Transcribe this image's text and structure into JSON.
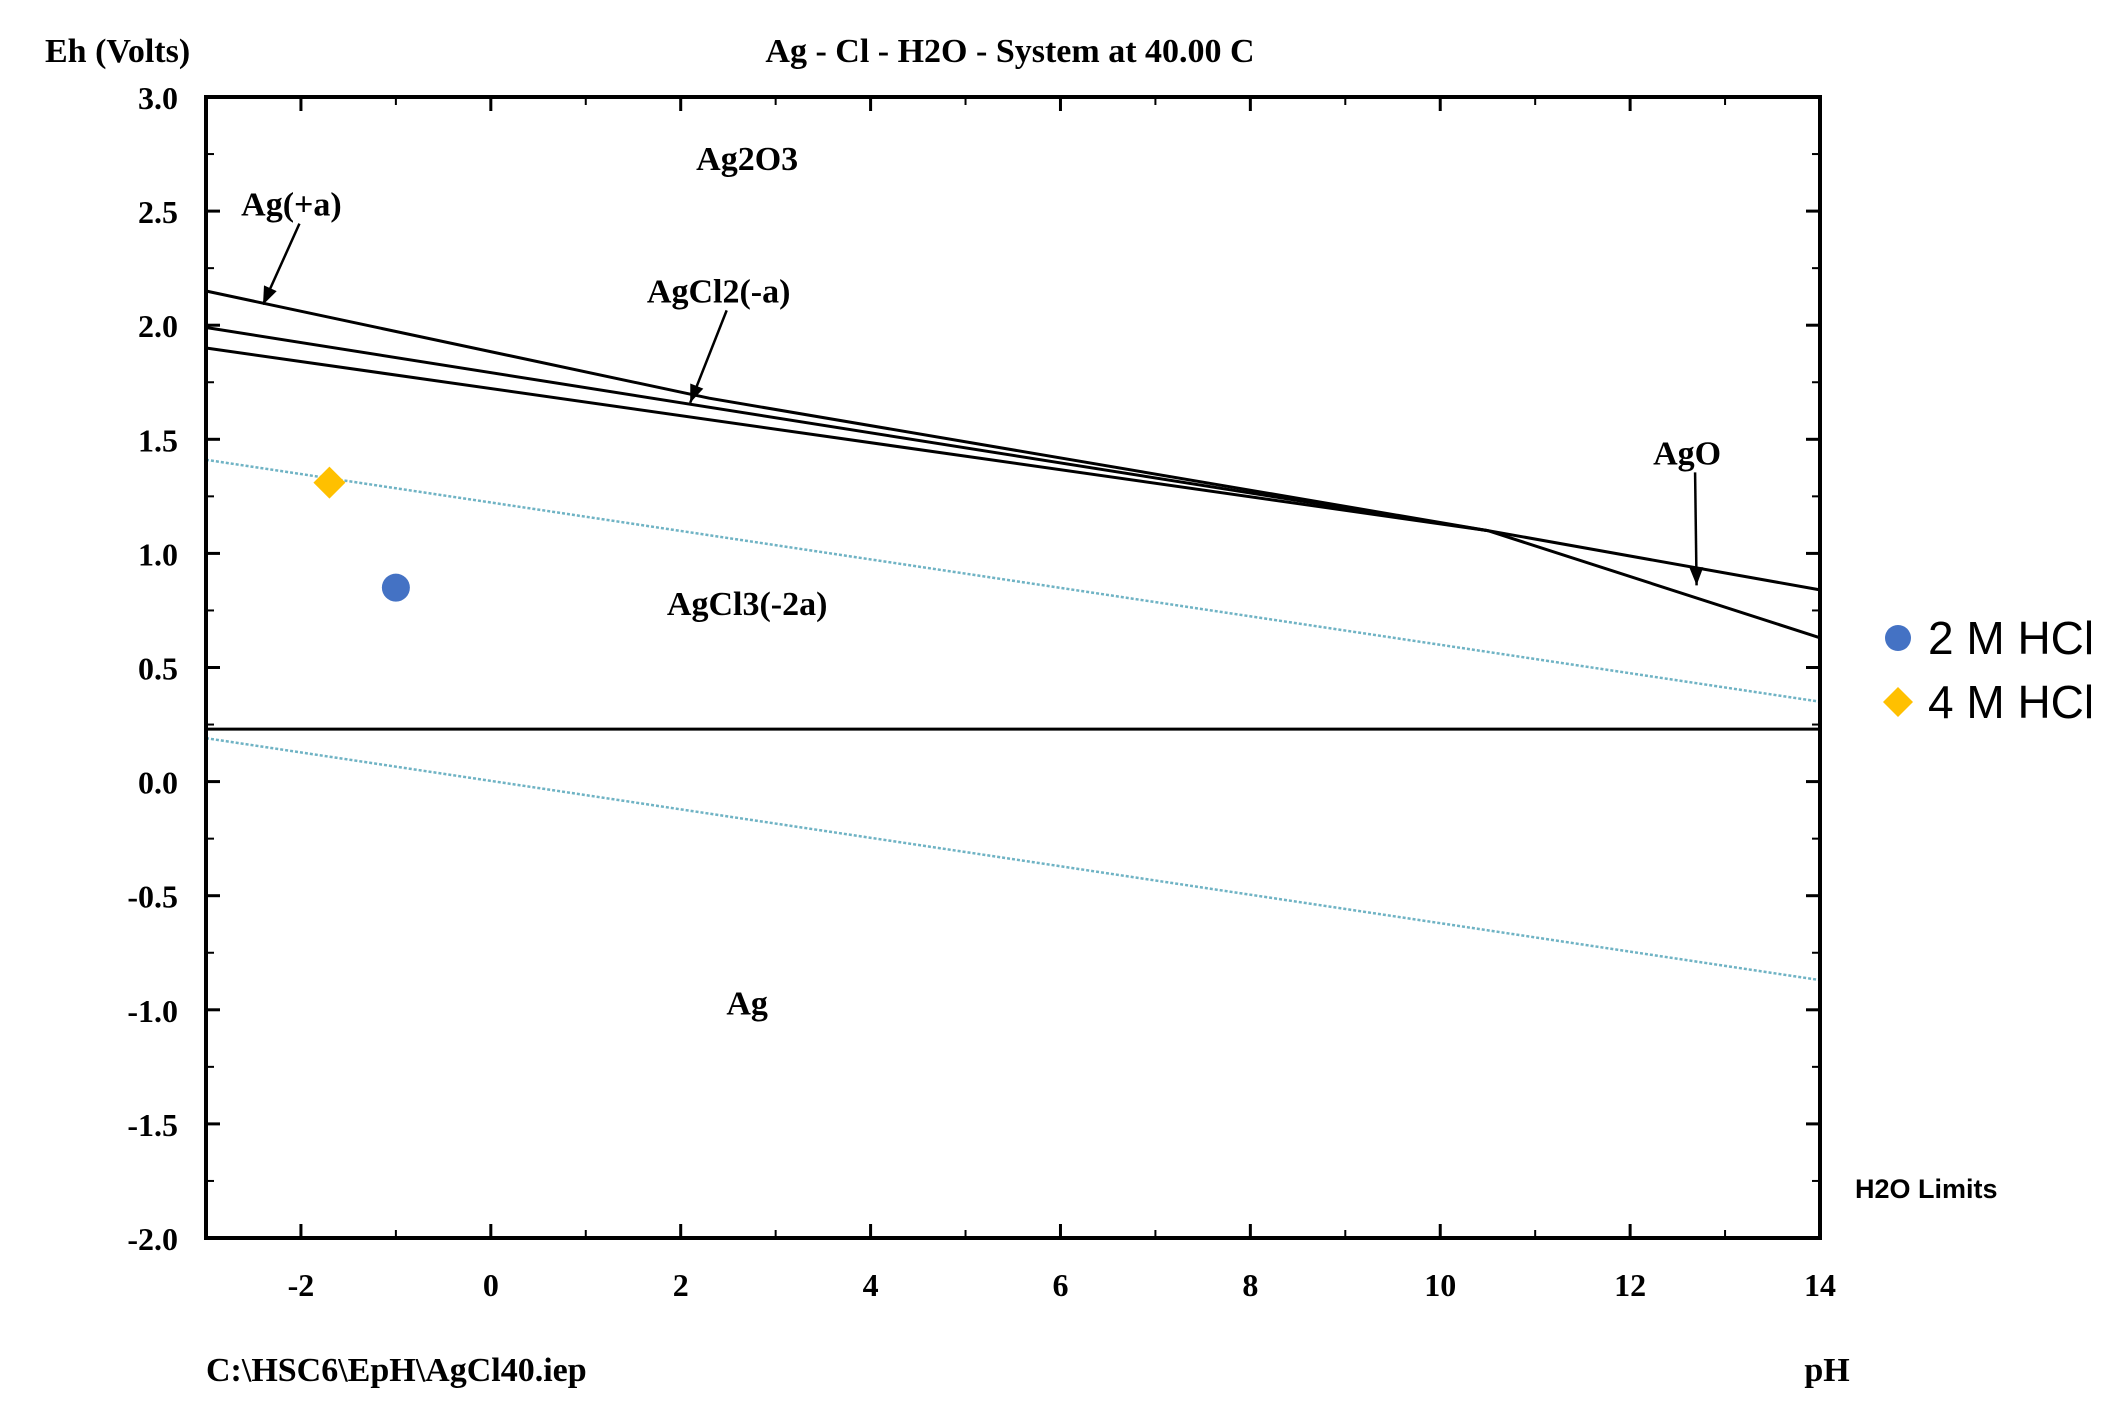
{
  "chart_data": {
    "type": "line",
    "title": "Ag - Cl - H2O - System at 40.00 C",
    "ylabel": "Eh (Volts)",
    "xlabel": "pH",
    "file_label": "C:\\HSC6\\EpH\\AgCl40.iep",
    "xlim": [
      -3,
      14
    ],
    "ylim": [
      -2.0,
      3.0
    ],
    "xticks": [
      -2,
      0,
      2,
      4,
      6,
      8,
      10,
      12,
      14
    ],
    "xtick_labels": [
      "-2",
      "0",
      "2",
      "4",
      "6",
      "8",
      "10",
      "12",
      "14"
    ],
    "yticks": [
      3.0,
      2.5,
      2.0,
      1.5,
      1.0,
      0.5,
      0.0,
      -0.5,
      -1.0,
      -1.5,
      -2.0
    ],
    "ytick_labels": [
      "3.0",
      "2.5",
      "2.0",
      "1.5",
      "1.0",
      "0.5",
      "0.0",
      "-0.5",
      "-1.0",
      "-1.5",
      "-2.0"
    ],
    "boundaries": [
      {
        "name": "AgO / Ag2O3 upper boundary",
        "x": [
          -3,
          2.3,
          10.5,
          14
        ],
        "y": [
          2.15,
          1.68,
          1.1,
          0.63
        ]
      },
      {
        "name": "Ag(+a) / AgCl2(-a) boundary",
        "x": [
          -3,
          10.5,
          14
        ],
        "y": [
          1.99,
          1.1,
          0.84
        ]
      },
      {
        "name": "AgCl3(-2a) upper boundary",
        "x": [
          -3,
          10.5
        ],
        "y": [
          1.9,
          1.1
        ]
      },
      {
        "name": "AgCl3(-2a) / Ag boundary",
        "x": [
          -3,
          14
        ],
        "y": [
          0.23,
          0.23
        ]
      }
    ],
    "water_limits": {
      "label": "H2O Limits",
      "upper": {
        "x": [
          -3,
          14
        ],
        "y": [
          1.41,
          0.35
        ]
      },
      "lower": {
        "x": [
          -3,
          14
        ],
        "y": [
          0.19,
          -0.87
        ]
      }
    },
    "regions": [
      {
        "label": "Ag2O3",
        "x": 2.7,
        "y": 2.68
      },
      {
        "label": "AgCl3(-2a)",
        "x": 2.7,
        "y": 0.73
      },
      {
        "label": "Ag",
        "x": 2.7,
        "y": -1.02
      }
    ],
    "annotations": [
      {
        "label": "Ag(+a)",
        "text_x": -2.1,
        "text_y": 2.48,
        "arrow_to_x": -2.4,
        "arrow_to_y": 2.09
      },
      {
        "label": "AgCl2(-a)",
        "text_x": 2.4,
        "text_y": 2.1,
        "arrow_to_x": 2.1,
        "arrow_to_y": 1.66
      },
      {
        "label": "AgO",
        "text_x": 12.6,
        "text_y": 1.39,
        "arrow_to_x": 12.7,
        "arrow_to_y": 0.86
      }
    ],
    "series": [
      {
        "name": "2 M HCl",
        "marker": "circle",
        "color": "#4472c4",
        "x": [
          -1.0
        ],
        "y": [
          0.85
        ]
      },
      {
        "name": "4 M HCl",
        "marker": "diamond",
        "color": "#ffc000",
        "x": [
          -1.7
        ],
        "y": [
          1.31
        ]
      }
    ],
    "legend": {
      "placement": "right",
      "items": [
        "2 M HCl",
        "4 M HCl"
      ]
    }
  }
}
